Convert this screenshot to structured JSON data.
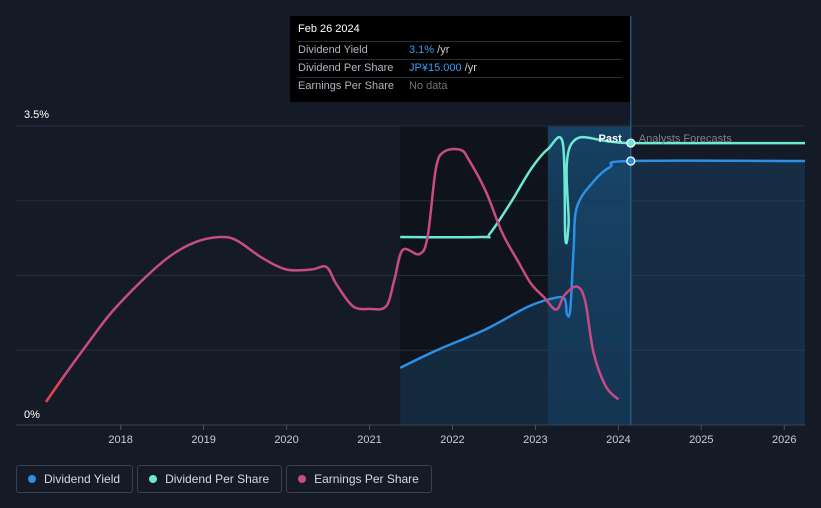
{
  "chart_data": {
    "type": "line",
    "title": "",
    "xlabel": "",
    "ylabel": "",
    "xlim": [
      2017.1,
      2026.25
    ],
    "ylim": [
      0,
      3.5
    ],
    "y_tick_labels": [
      "3.5%",
      "0%"
    ],
    "x_ticks": [
      2018,
      2019,
      2020,
      2021,
      2022,
      2023,
      2024,
      2025,
      2026
    ],
    "x_tick_labels": [
      "2018",
      "2019",
      "2020",
      "2021",
      "2022",
      "2023",
      "2024",
      "2025",
      "2026"
    ],
    "divider_x": 2024.15,
    "highlight_start_x": 2023.15,
    "past_label": "Past",
    "forecast_label": "Analysts Forecasts",
    "colors": {
      "dividend_yield": "#2b8fe6",
      "dividend_per_share": "#6ee8d6",
      "earnings_per_share": "#c84a86",
      "earnings_start": "#e04545"
    },
    "series": [
      {
        "name": "Dividend Yield",
        "key": "dividend_yield",
        "points": [
          [
            2021.37,
            0.67
          ],
          [
            2021.8,
            0.87
          ],
          [
            2022.4,
            1.12
          ],
          [
            2022.9,
            1.38
          ],
          [
            2023.2,
            1.48
          ],
          [
            2023.35,
            1.48
          ],
          [
            2023.38,
            1.3
          ],
          [
            2023.42,
            1.35
          ],
          [
            2023.46,
            2.05
          ],
          [
            2023.5,
            2.55
          ],
          [
            2023.7,
            2.85
          ],
          [
            2023.9,
            3.02
          ],
          [
            2024.15,
            3.09
          ],
          [
            2026.25,
            3.09
          ]
        ]
      },
      {
        "name": "Dividend Per Share",
        "key": "dividend_per_share",
        "points": [
          [
            2021.37,
            2.2
          ],
          [
            2022.35,
            2.2
          ],
          [
            2022.45,
            2.24
          ],
          [
            2022.7,
            2.6
          ],
          [
            2022.95,
            3.0
          ],
          [
            2023.15,
            3.23
          ],
          [
            2023.33,
            3.3
          ],
          [
            2023.36,
            2.2
          ],
          [
            2023.4,
            2.35
          ],
          [
            2023.44,
            3.3
          ],
          [
            2024.15,
            3.3
          ],
          [
            2026.25,
            3.3
          ]
        ]
      },
      {
        "name": "Earnings Per Share",
        "key": "earnings_per_share",
        "points": [
          [
            2017.1,
            0.27
          ],
          [
            2017.3,
            0.55
          ],
          [
            2017.6,
            0.95
          ],
          [
            2017.9,
            1.33
          ],
          [
            2018.3,
            1.73
          ],
          [
            2018.6,
            1.98
          ],
          [
            2018.9,
            2.14
          ],
          [
            2019.2,
            2.2
          ],
          [
            2019.4,
            2.16
          ],
          [
            2019.7,
            1.96
          ],
          [
            2020.0,
            1.82
          ],
          [
            2020.3,
            1.82
          ],
          [
            2020.48,
            1.85
          ],
          [
            2020.6,
            1.65
          ],
          [
            2020.8,
            1.39
          ],
          [
            2021.0,
            1.36
          ],
          [
            2021.2,
            1.39
          ],
          [
            2021.3,
            1.7
          ],
          [
            2021.4,
            2.05
          ],
          [
            2021.6,
            2.0
          ],
          [
            2021.7,
            2.2
          ],
          [
            2021.8,
            3.0
          ],
          [
            2021.9,
            3.2
          ],
          [
            2022.1,
            3.22
          ],
          [
            2022.2,
            3.1
          ],
          [
            2022.4,
            2.74
          ],
          [
            2022.6,
            2.25
          ],
          [
            2022.8,
            1.9
          ],
          [
            2022.95,
            1.65
          ],
          [
            2023.1,
            1.5
          ],
          [
            2023.25,
            1.35
          ],
          [
            2023.35,
            1.52
          ],
          [
            2023.5,
            1.62
          ],
          [
            2023.6,
            1.45
          ],
          [
            2023.7,
            0.85
          ],
          [
            2023.85,
            0.45
          ],
          [
            2024.0,
            0.3
          ]
        ]
      }
    ],
    "forecast_dots": [
      {
        "series": "dividend_per_share",
        "x": 2024.15,
        "y": 3.3
      },
      {
        "series": "dividend_yield",
        "x": 2024.15,
        "y": 3.09
      }
    ]
  },
  "tooltip": {
    "date": "Feb 26 2024",
    "rows": [
      {
        "label": "Dividend Yield",
        "value": "3.1%",
        "suffix": " /yr"
      },
      {
        "label": "Dividend Per Share",
        "value": "JP¥15.000",
        "suffix": " /yr"
      },
      {
        "label": "Earnings Per Share",
        "value": "No data",
        "suffix": ""
      }
    ]
  },
  "legend": [
    {
      "label": "Dividend Yield",
      "color": "#2b8fe6"
    },
    {
      "label": "Dividend Per Share",
      "color": "#6ee8d6"
    },
    {
      "label": "Earnings Per Share",
      "color": "#c84a86"
    }
  ]
}
